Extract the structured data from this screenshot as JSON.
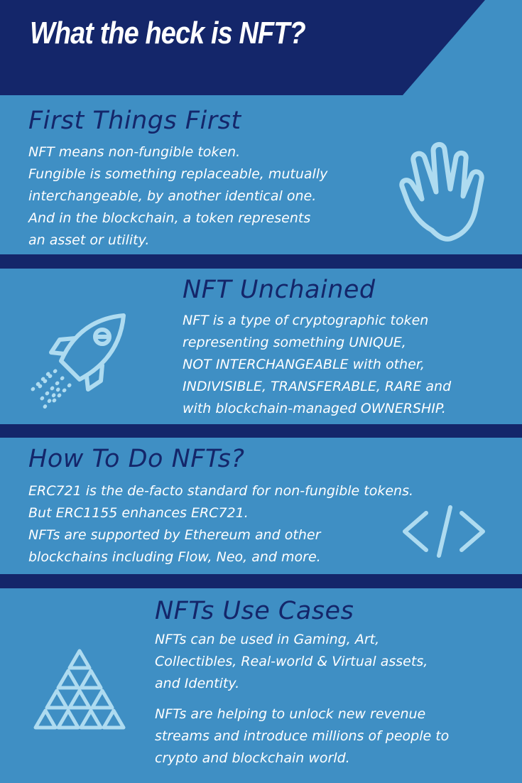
{
  "title": "What the heck is NFT?",
  "colors": {
    "background": "#3f8fc4",
    "dark_navy": "#14266a",
    "text": "#ffffff",
    "icon_stroke": "#aedbf0"
  },
  "sections": [
    {
      "title": "First Things First",
      "icon": "waving-hand-icon",
      "lines": [
        "NFT means non-fungible token.",
        "Fungible is something replaceable, mutually",
        "interchangeable, by another identical one.",
        "And in the blockchain, a token represents",
        "an asset or utility."
      ]
    },
    {
      "title": "NFT Unchained",
      "icon": "rocket-icon",
      "lines": [
        "NFT is a type of cryptographic token",
        "representing something UNIQUE,",
        "NOT INTERCHANGEABLE with other,",
        "INDIVISIBLE, TRANSFERABLE, RARE and",
        "with blockchain-managed OWNERSHIP."
      ]
    },
    {
      "title": "How To Do NFTs?",
      "icon": "code-icon",
      "lines": [
        "ERC721 is the de-facto standard for non-fungible tokens.",
        "But ERC1155 enhances ERC721.",
        "NFTs are supported by Ethereum and other",
        "blockchains including Flow, Neo, and more."
      ]
    },
    {
      "title": "NFTs Use Cases",
      "icon": "triangle-pyramid-icon",
      "lines": [
        "NFTs can be used in Gaming, Art,",
        "Collectibles, Real-world & Virtual assets,",
        "and Identity."
      ],
      "lines2": [
        "NFTs are helping to unlock new revenue",
        "streams and introduce millions of people to",
        "crypto and blockchain world."
      ]
    }
  ]
}
